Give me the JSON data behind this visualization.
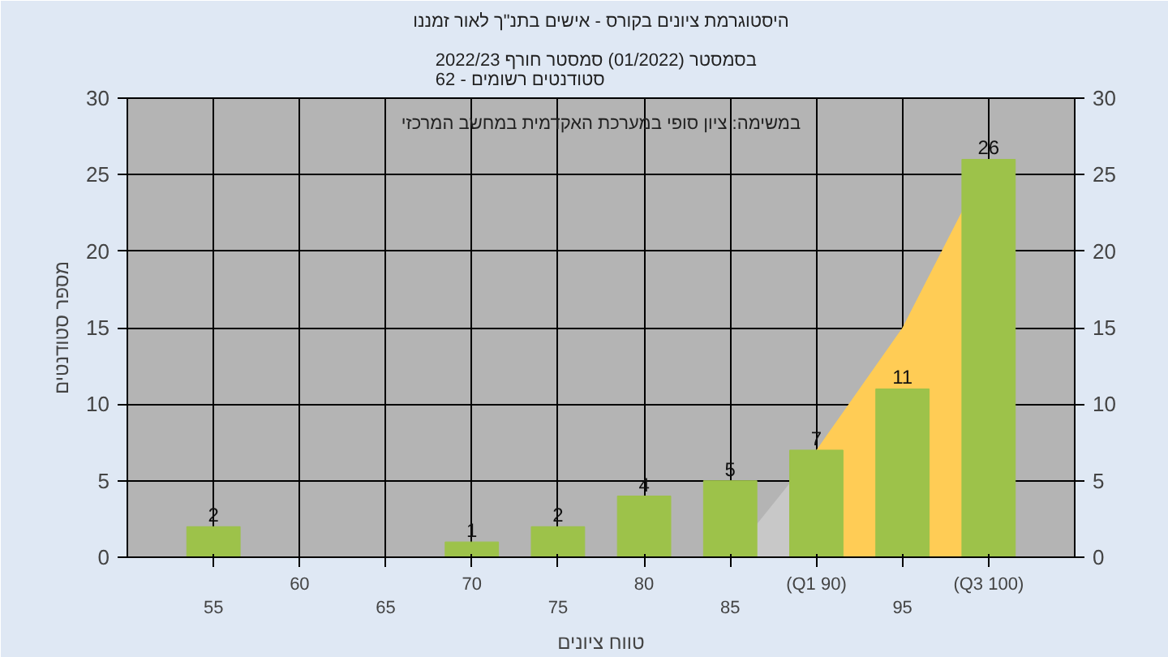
{
  "chart_data": {
    "type": "bar",
    "title": "היסטוגרמת ציונים בקורס - אישים בתנ\"ך לאור זמננו",
    "subtitle": "בסמסטר  (01/2022)  סמסטר חורף 2022/23\nסטודנטים רשומים - 62",
    "xlabel": "טווח ציונים",
    "ylabel": "מספר סטודנטים",
    "annotations": [
      "במשימה: ציון סופי במערכת האקדמית במחשב המרכזי"
    ],
    "categories": [
      "55",
      "60",
      "65",
      "70",
      "75",
      "80",
      "85",
      "(Q1 90)",
      "95",
      "(Q3 100)"
    ],
    "series": [
      {
        "type": "area",
        "color": "#c8c8c8",
        "values": [
          null,
          null,
          null,
          null,
          null,
          null,
          0,
          7,
          null,
          null
        ]
      },
      {
        "type": "area",
        "color": "#ffcc55",
        "values": [
          null,
          null,
          null,
          null,
          null,
          null,
          null,
          7,
          15,
          26
        ]
      },
      {
        "color": "#9dc24a",
        "values": [
          2,
          0,
          0,
          1,
          2,
          4,
          5,
          7,
          11,
          26
        ],
        "value_labels": [
          "2",
          null,
          null,
          "1",
          "2",
          "4",
          "5",
          "7",
          "11",
          "26"
        ]
      }
    ],
    "ylim": [
      0,
      30
    ],
    "yticks": [
      0,
      5,
      10,
      15,
      20,
      25,
      30
    ],
    "y2lim": [
      0,
      30
    ],
    "y2ticks": [
      0,
      5,
      10,
      15,
      20,
      25,
      30
    ],
    "grid": true
  }
}
